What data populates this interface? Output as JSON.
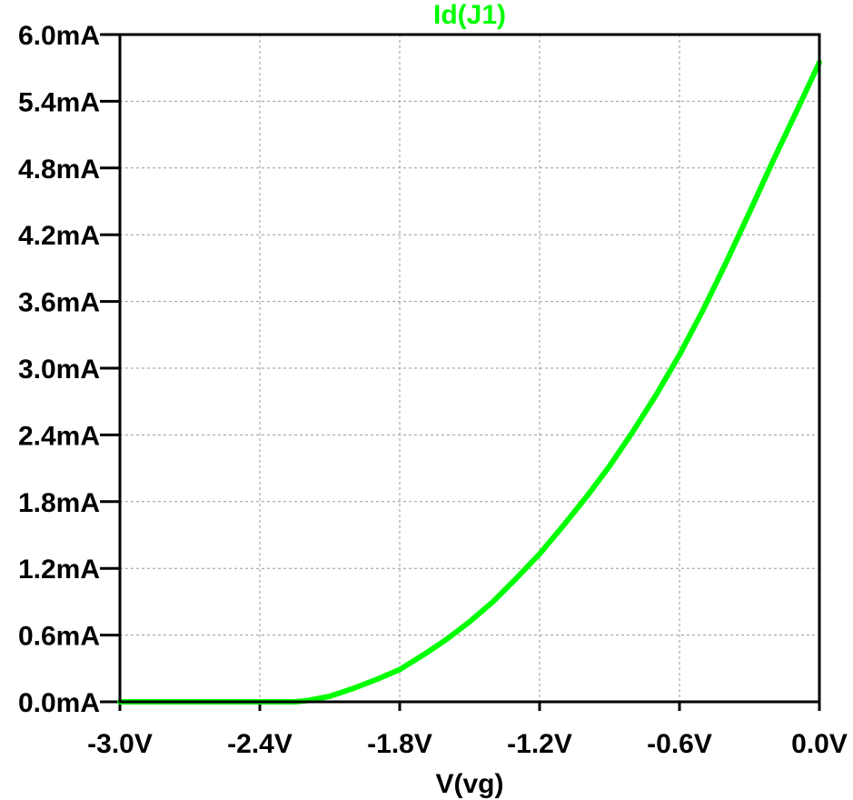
{
  "chart_data": {
    "type": "line",
    "title": "",
    "xlabel": "V(vg)",
    "ylabel": "",
    "xlim": [
      -3.0,
      0.0
    ],
    "ylim": [
      0.0,
      6.0
    ],
    "grid": true,
    "x_ticks": [
      -3.0,
      -2.4,
      -1.8,
      -1.2,
      -0.6,
      0.0
    ],
    "x_tick_labels": [
      "-3.0V",
      "-2.4V",
      "-1.8V",
      "-1.2V",
      "-0.6V",
      "0.0V"
    ],
    "y_ticks": [
      0.0,
      0.6,
      1.2,
      1.8,
      2.4,
      3.0,
      3.6,
      4.2,
      4.8,
      5.4,
      6.0
    ],
    "y_tick_labels": [
      "0.0mA",
      "0.6mA",
      "1.2mA",
      "1.8mA",
      "2.4mA",
      "3.0mA",
      "3.6mA",
      "4.2mA",
      "4.8mA",
      "5.4mA",
      "6.0mA"
    ],
    "series": [
      {
        "name": "Id(J1)",
        "color": "#00ff00",
        "x": [
          -3.0,
          -2.8,
          -2.6,
          -2.4,
          -2.3,
          -2.25,
          -2.2,
          -2.1,
          -2.0,
          -1.9,
          -1.8,
          -1.7,
          -1.6,
          -1.5,
          -1.4,
          -1.3,
          -1.2,
          -1.1,
          -1.0,
          -0.9,
          -0.8,
          -0.7,
          -0.6,
          -0.5,
          -0.4,
          -0.3,
          -0.2,
          -0.1,
          0.0
        ],
        "y": [
          0.0,
          0.0,
          0.0,
          0.0,
          0.0,
          0.0,
          0.01,
          0.05,
          0.12,
          0.2,
          0.29,
          0.42,
          0.56,
          0.72,
          0.9,
          1.11,
          1.33,
          1.58,
          1.84,
          2.12,
          2.43,
          2.76,
          3.12,
          3.52,
          3.95,
          4.4,
          4.86,
          5.3,
          5.75
        ]
      }
    ]
  }
}
